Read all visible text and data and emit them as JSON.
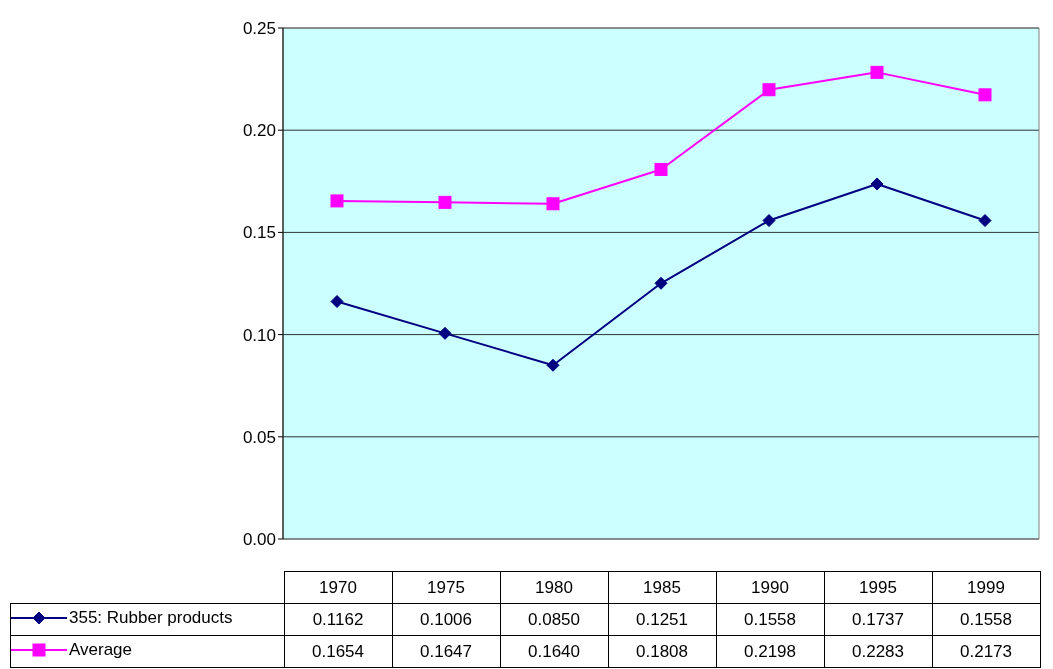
{
  "chart_data": {
    "type": "line",
    "categories": [
      "1970",
      "1975",
      "1980",
      "1985",
      "1990",
      "1995",
      "1999"
    ],
    "series": [
      {
        "name": "355: Rubber products",
        "color": "#000080",
        "marker": "diamond",
        "values": [
          0.1162,
          0.1006,
          0.085,
          0.1251,
          0.1558,
          0.1737,
          0.1558
        ],
        "value_labels": [
          "0.1162",
          "0.1006",
          "0.0850",
          "0.1251",
          "0.1558",
          "0.1737",
          "0.1558"
        ]
      },
      {
        "name": "Average",
        "color": "#ff00ff",
        "marker": "square",
        "values": [
          0.1654,
          0.1647,
          0.164,
          0.1808,
          0.2198,
          0.2283,
          0.2173
        ],
        "value_labels": [
          "0.1654",
          "0.1647",
          "0.1640",
          "0.1808",
          "0.2198",
          "0.2283",
          "0.2173"
        ]
      }
    ],
    "ylim": [
      0,
      0.25
    ],
    "yticks": [
      {
        "value": 0,
        "label": "0.00"
      },
      {
        "value": 0.05,
        "label": "0.05"
      },
      {
        "value": 0.1,
        "label": "0.10"
      },
      {
        "value": 0.15,
        "label": "0.15"
      },
      {
        "value": 0.2,
        "label": "0.20"
      },
      {
        "value": 0.25,
        "label": "0.25"
      }
    ],
    "grid": "y",
    "legend": "bottom left",
    "data_labels": true
  }
}
